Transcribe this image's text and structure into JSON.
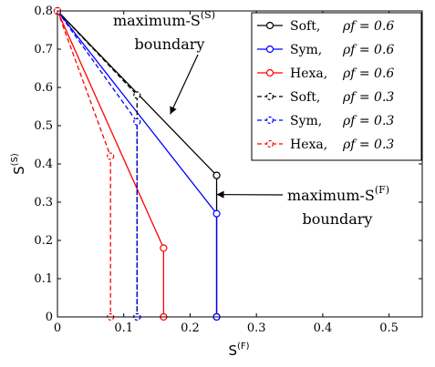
{
  "chart_data": {
    "type": "line",
    "xlabel": "S",
    "xlabel_sup": "(F)",
    "ylabel": "S",
    "ylabel_sup": "(S)",
    "xlim": [
      0,
      0.55
    ],
    "ylim": [
      0,
      0.8
    ],
    "xticks": [
      0,
      0.1,
      0.2,
      0.3,
      0.4,
      0.5
    ],
    "yticks": [
      0,
      0.1,
      0.2,
      0.3,
      0.4,
      0.5,
      0.6,
      0.7,
      0.8
    ],
    "xtick_labels": [
      "0",
      "0.1",
      "0.2",
      "0.3",
      "0.4",
      "0.5"
    ],
    "ytick_labels": [
      "0",
      "0.1",
      "0.2",
      "0.3",
      "0.4",
      "0.5",
      "0.6",
      "0.7",
      "0.8"
    ],
    "grid": false,
    "legend_position": "top-right",
    "series": [
      {
        "name": "Soft, ρf = 0.6",
        "label": "Soft,",
        "rho": "ρf = 0.6",
        "color": "#000000",
        "dashed": false,
        "x": [
          0,
          0.24,
          0.24,
          0.24
        ],
        "y": [
          0.8,
          0.37,
          0.37,
          0
        ]
      },
      {
        "name": "Sym, ρf = 0.6",
        "label": "Sym,",
        "rho": "ρf = 0.6",
        "color": "#0000ff",
        "dashed": false,
        "x": [
          0,
          0.24,
          0.24
        ],
        "y": [
          0.8,
          0.27,
          0
        ]
      },
      {
        "name": "Hexa, ρf = 0.6",
        "label": "Hexa,",
        "rho": "ρf = 0.6",
        "color": "#ff0000",
        "dashed": false,
        "x": [
          0,
          0.16,
          0.16
        ],
        "y": [
          0.8,
          0.18,
          0
        ]
      },
      {
        "name": "Soft, ρf = 0.3",
        "label": "Soft,",
        "rho": "ρf = 0.3",
        "color": "#000000",
        "dashed": true,
        "x": [
          0,
          0.12,
          0.12
        ],
        "y": [
          0.8,
          0.58,
          0
        ]
      },
      {
        "name": "Sym, ρf = 0.3",
        "label": "Sym,",
        "rho": "ρf = 0.3",
        "color": "#0000ff",
        "dashed": true,
        "x": [
          0,
          0.12,
          0.12
        ],
        "y": [
          0.8,
          0.51,
          0
        ]
      },
      {
        "name": "Hexa, ρf = 0.3",
        "label": "Hexa,",
        "rho": "ρf = 0.3",
        "color": "#ff0000",
        "dashed": true,
        "x": [
          0,
          0.08,
          0.08
        ],
        "y": [
          0.8,
          0.42,
          0
        ]
      }
    ],
    "annotations": [
      {
        "id": "s-boundary",
        "line1": "maximum-S",
        "line1_sup": "(S)",
        "line2": "boundary",
        "arrow_to": {
          "x": 0.17,
          "y": 0.53
        }
      },
      {
        "id": "f-boundary",
        "line1": "maximum-S",
        "line1_sup": "(F)",
        "line2": "boundary",
        "arrow_to": {
          "x": 0.24,
          "y": 0.32
        }
      }
    ]
  }
}
